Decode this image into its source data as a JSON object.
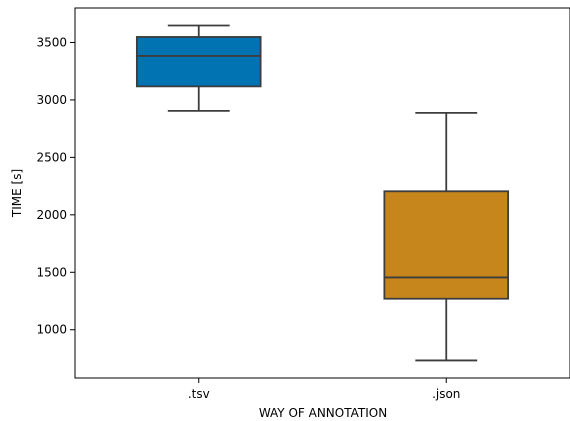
{
  "chart_data": {
    "type": "box",
    "xlabel": "WAY OF ANNOTATION",
    "ylabel": "TIME [s]",
    "ylim": [
      580,
      3800
    ],
    "yticks": [
      1000,
      1500,
      2000,
      2500,
      3000,
      3500
    ],
    "grid": false,
    "categories": [
      ".tsv",
      ".json"
    ],
    "boxes": [
      {
        "category": ".tsv",
        "whisker_low": 2905,
        "q1": 3118,
        "median": 3383,
        "q3": 3548,
        "whisker_high": 3648,
        "color": "#0173b2"
      },
      {
        "category": ".json",
        "whisker_low": 733,
        "q1": 1270,
        "median": 1455,
        "q3": 2205,
        "whisker_high": 2887,
        "color": "#c6861c"
      }
    ]
  }
}
